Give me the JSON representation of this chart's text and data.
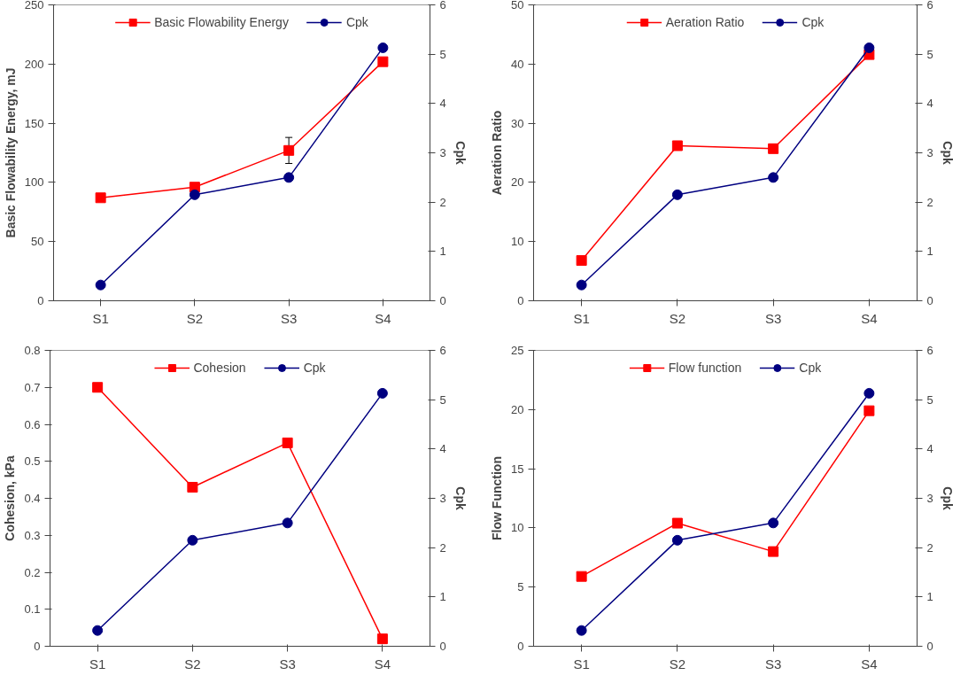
{
  "chart_data": [
    {
      "type": "line",
      "categories": [
        "S1",
        "S2",
        "S3",
        "S4"
      ],
      "ylabel": "Basic Flowability Energy, mJ",
      "y2label": "Cpk",
      "ylim": [
        0,
        250
      ],
      "yticks": [
        0,
        50,
        100,
        150,
        200,
        250
      ],
      "y2lim": [
        0,
        6
      ],
      "y2ticks": [
        0,
        1,
        2,
        3,
        4,
        5,
        6
      ],
      "grid": false,
      "legend": "top",
      "series": [
        {
          "name": "Basic Flowability Energy",
          "color": "#ff0000",
          "marker": "square",
          "values": [
            87,
            96,
            127,
            202
          ],
          "errors": [
            null,
            null,
            11,
            null
          ]
        },
        {
          "name": "Cpk",
          "color": "#000080",
          "marker": "circle",
          "axis": "y2",
          "values": [
            0.32,
            2.15,
            2.5,
            5.13
          ]
        }
      ]
    },
    {
      "type": "line",
      "categories": [
        "S1",
        "S2",
        "S3",
        "S4"
      ],
      "ylabel": "Aeration Ratio",
      "y2label": "Cpk",
      "ylim": [
        0,
        50
      ],
      "yticks": [
        0,
        10,
        20,
        30,
        40,
        50
      ],
      "y2lim": [
        0,
        6
      ],
      "y2ticks": [
        0,
        1,
        2,
        3,
        4,
        5,
        6
      ],
      "grid": false,
      "legend": "top",
      "series": [
        {
          "name": "Aeration Ratio",
          "color": "#ff0000",
          "marker": "square",
          "values": [
            6.8,
            26.2,
            25.7,
            41.6
          ]
        },
        {
          "name": "Cpk",
          "color": "#000080",
          "marker": "circle",
          "axis": "y2",
          "values": [
            0.32,
            2.15,
            2.5,
            5.13
          ]
        }
      ]
    },
    {
      "type": "line",
      "categories": [
        "S1",
        "S2",
        "S3",
        "S4"
      ],
      "ylabel": "Cohesion, kPa",
      "y2label": "Cpk",
      "ylim": [
        0,
        0.8
      ],
      "yticks": [
        0,
        0.1,
        0.2,
        0.3,
        0.4,
        0.5,
        0.6,
        0.7,
        0.8
      ],
      "y2lim": [
        0,
        6
      ],
      "y2ticks": [
        0,
        1,
        2,
        3,
        4,
        5,
        6
      ],
      "grid": false,
      "legend": "top",
      "series": [
        {
          "name": "Cohesion",
          "color": "#ff0000",
          "marker": "square",
          "values": [
            0.7,
            0.43,
            0.55,
            0.02
          ]
        },
        {
          "name": "Cpk",
          "color": "#000080",
          "marker": "circle",
          "axis": "y2",
          "values": [
            0.32,
            2.15,
            2.5,
            5.13
          ]
        }
      ]
    },
    {
      "type": "line",
      "categories": [
        "S1",
        "S2",
        "S3",
        "S4"
      ],
      "ylabel": "Flow Function",
      "y2label": "Cpk",
      "ylim": [
        0,
        25
      ],
      "yticks": [
        0,
        5,
        10,
        15,
        20,
        25
      ],
      "y2lim": [
        0,
        6
      ],
      "y2ticks": [
        0,
        1,
        2,
        3,
        4,
        5,
        6
      ],
      "grid": false,
      "legend": "top",
      "series": [
        {
          "name": "Flow function",
          "color": "#ff0000",
          "marker": "square",
          "values": [
            5.9,
            10.4,
            8.0,
            19.9
          ]
        },
        {
          "name": "Cpk",
          "color": "#000080",
          "marker": "circle",
          "axis": "y2",
          "values": [
            0.32,
            2.15,
            2.5,
            5.13
          ]
        }
      ]
    }
  ]
}
